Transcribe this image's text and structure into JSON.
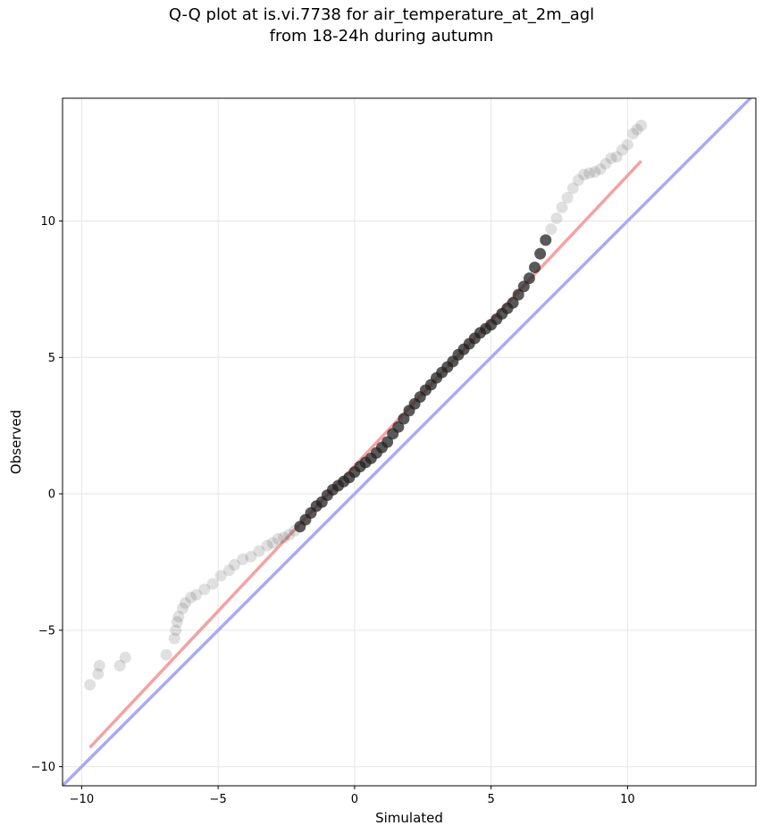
{
  "chart_data": {
    "type": "scatter",
    "title": "Q-Q plot at is.vi.7738 for air_temperature_at_2m_agl",
    "subtitle": "from 18-24h during autumn",
    "xlabel": "Simulated",
    "ylabel": "Observed",
    "xlim": [
      -10.7,
      14.7
    ],
    "ylim": [
      -10.7,
      14.5
    ],
    "xticks": [
      -10,
      -5,
      0,
      5,
      10
    ],
    "yticks": [
      -10,
      -5,
      0,
      5,
      10
    ],
    "xtick_labels": [
      "−10",
      "−5",
      "0",
      "5",
      "10"
    ],
    "ytick_labels": [
      "−10",
      "−5",
      "0",
      "5",
      "10"
    ],
    "grid": true,
    "points_color": "#555555",
    "fit_line_color": "#f4a2a2",
    "identity_line_color": "#aaaaf4",
    "series": [
      {
        "kind": "quantiles",
        "x": [
          -9.7,
          -9.4,
          -9.35,
          -8.6,
          -8.4,
          -6.9,
          -6.6,
          -6.55,
          -6.5,
          -6.45,
          -6.3,
          -6.2,
          -6.0,
          -5.8,
          -5.5,
          -5.2,
          -4.9,
          -4.6,
          -4.4,
          -4.1,
          -3.8,
          -3.5,
          -3.2,
          -3.0,
          -2.8,
          -2.6,
          -2.4,
          -2.2,
          -2.0,
          -1.8,
          -1.6,
          -1.4,
          -1.2,
          -1.0,
          -0.8,
          -0.6,
          -0.4,
          -0.2,
          0.0,
          0.2,
          0.4,
          0.6,
          0.8,
          1.0,
          1.2,
          1.4,
          1.6,
          1.8,
          2.0,
          2.2,
          2.4,
          2.6,
          2.8,
          3.0,
          3.2,
          3.4,
          3.6,
          3.8,
          4.0,
          4.2,
          4.4,
          4.6,
          4.8,
          5.0,
          5.2,
          5.4,
          5.6,
          5.8,
          6.0,
          6.2,
          6.4,
          6.6,
          6.8,
          7.0,
          7.2,
          7.4,
          7.6,
          7.8,
          8.0,
          8.2,
          8.4,
          8.6,
          8.8,
          9.0,
          9.2,
          9.4,
          9.6,
          9.8,
          10.0,
          10.2,
          10.35,
          10.5
        ],
        "y": [
          -7.0,
          -6.6,
          -6.3,
          -6.3,
          -6.0,
          -5.9,
          -5.3,
          -5.0,
          -4.7,
          -4.5,
          -4.2,
          -4.0,
          -3.8,
          -3.7,
          -3.5,
          -3.3,
          -3.0,
          -2.8,
          -2.6,
          -2.4,
          -2.3,
          -2.1,
          -1.9,
          -1.8,
          -1.65,
          -1.6,
          -1.5,
          -1.35,
          -1.2,
          -0.95,
          -0.7,
          -0.45,
          -0.3,
          -0.05,
          0.15,
          0.3,
          0.45,
          0.6,
          0.8,
          1.0,
          1.15,
          1.3,
          1.5,
          1.7,
          1.9,
          2.2,
          2.45,
          2.75,
          3.05,
          3.3,
          3.55,
          3.8,
          4.0,
          4.25,
          4.45,
          4.65,
          4.85,
          5.1,
          5.3,
          5.5,
          5.7,
          5.9,
          6.05,
          6.2,
          6.4,
          6.6,
          6.8,
          7.0,
          7.3,
          7.6,
          7.9,
          8.3,
          8.8,
          9.3,
          9.7,
          10.1,
          10.5,
          10.85,
          11.2,
          11.5,
          11.7,
          11.75,
          11.8,
          11.9,
          12.1,
          12.3,
          12.35,
          12.6,
          12.8,
          13.2,
          13.35,
          13.5
        ]
      },
      {
        "kind": "fit_line",
        "x": [
          -9.7,
          10.5
        ],
        "y": [
          -9.3,
          12.2
        ]
      },
      {
        "kind": "identity_line",
        "x": [
          -10.7,
          14.7
        ],
        "y": [
          -10.7,
          14.7
        ]
      }
    ]
  }
}
